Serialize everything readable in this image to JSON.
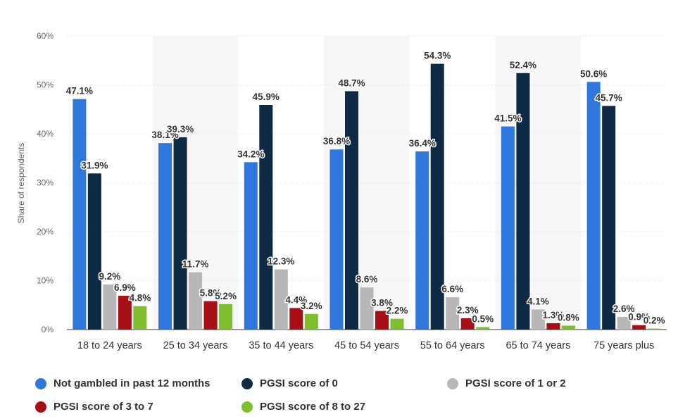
{
  "chart_data": {
    "type": "bar",
    "categories": [
      "18 to 24 years",
      "25 to 34 years",
      "35 to 44 years",
      "45 to 54 years",
      "55 to 64 years",
      "65 to 74 years",
      "75 years plus"
    ],
    "series": [
      {
        "name": "Not gambled in past 12 months",
        "color": "#2f77dd",
        "values": [
          47.1,
          38.1,
          34.2,
          36.8,
          36.4,
          41.5,
          50.6
        ],
        "labels": [
          "47.1%",
          "38.1%",
          "34.2%",
          "36.8%",
          "36.4%",
          "41.5%",
          "50.6%"
        ]
      },
      {
        "name": "PGSI score of 0",
        "color": "#0f2a44",
        "values": [
          31.9,
          39.3,
          45.9,
          48.7,
          54.3,
          52.4,
          45.7
        ],
        "labels": [
          "31.9%",
          "39.3%",
          "45.9%",
          "48.7%",
          "54.3%",
          "52.4%",
          "45.7%"
        ]
      },
      {
        "name": "PGSI score of 1 or 2",
        "color": "#b7b7b7",
        "values": [
          9.2,
          11.7,
          12.3,
          8.6,
          6.6,
          4.1,
          2.6
        ],
        "labels": [
          "9.2%",
          "11.7%",
          "12.3%",
          "8.6%",
          "6.6%",
          "4.1%",
          "2.6%"
        ]
      },
      {
        "name": "PGSI score of 3 to 7",
        "color": "#a50f15",
        "values": [
          6.9,
          5.8,
          4.4,
          3.8,
          2.3,
          1.3,
          0.9
        ],
        "labels": [
          "6.9%",
          "5.8%",
          "4.4%",
          "3.8%",
          "2.3%",
          "1.3%",
          "0.9%"
        ]
      },
      {
        "name": "PGSI score of 8 to 27",
        "color": "#7fbf2e",
        "values": [
          4.8,
          5.2,
          3.2,
          2.2,
          0.5,
          0.8,
          0.2
        ],
        "labels": [
          "4.8%",
          "5.2%",
          "3.2%",
          "2.2%",
          "0.5%",
          "0.8%",
          "0.2%"
        ]
      }
    ],
    "ylabel": "Share of respondents",
    "ylim": [
      0,
      60
    ],
    "yticks": [
      "0%",
      "10%",
      "20%",
      "30%",
      "40%",
      "50%",
      "60%"
    ],
    "grid": true,
    "legend_position": "bottom"
  }
}
